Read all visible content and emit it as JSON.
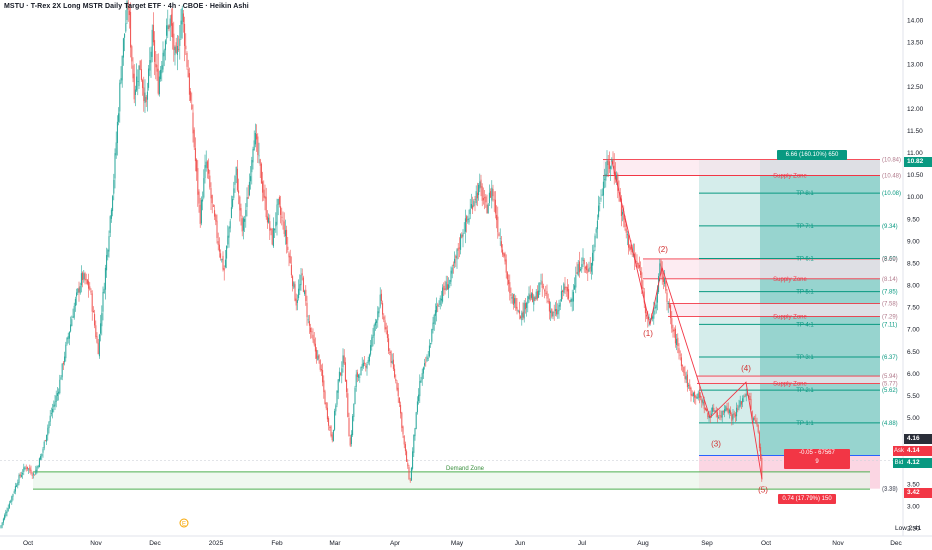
{
  "title": "MSTU · T-Rex 2X Long MSTR Daily Target ETF · 4h · CBOE · Heikin Ashi",
  "colors": {
    "up": "#26a69a",
    "down": "#ef5350",
    "tp_line": "#089981",
    "supply": "#f23645",
    "demand_line": "#4caf50",
    "target_fill": "#b2dfdb",
    "stop_fill": "#f8bbd0"
  },
  "chart_data": {
    "type": "candlestick",
    "ylim": [
      2.2,
      14.4
    ],
    "y_ticks": [
      "14.00",
      "13.50",
      "13.00",
      "12.50",
      "12.00",
      "11.50",
      "11.00",
      "10.50",
      "10.00",
      "9.50",
      "9.00",
      "8.50",
      "8.00",
      "7.50",
      "7.00",
      "6.50",
      "6.00",
      "5.50",
      "5.00",
      "4.50",
      "4.00",
      "3.50",
      "3.00",
      "2.50"
    ],
    "x_ticks": [
      "Oct",
      "Nov",
      "Dec",
      "2025",
      "Feb",
      "Mar",
      "Apr",
      "May",
      "Jun",
      "Jul",
      "Aug",
      "Sep",
      "Oct",
      "Nov",
      "Dec"
    ],
    "close_path": [
      [
        0,
        2.5
      ],
      [
        10,
        3.1
      ],
      [
        18,
        3.6
      ],
      [
        26,
        3.9
      ],
      [
        34,
        3.7
      ],
      [
        42,
        4.2
      ],
      [
        50,
        5.0
      ],
      [
        58,
        5.6
      ],
      [
        66,
        6.6
      ],
      [
        74,
        7.5
      ],
      [
        82,
        8.2
      ],
      [
        90,
        7.9
      ],
      [
        98,
        6.5
      ],
      [
        106,
        8.5
      ],
      [
        114,
        10.5
      ],
      [
        122,
        13.2
      ],
      [
        128,
        14.4
      ],
      [
        134,
        12.4
      ],
      [
        140,
        13.0
      ],
      [
        146,
        12.0
      ],
      [
        152,
        13.6
      ],
      [
        158,
        12.5
      ],
      [
        164,
        13.5
      ],
      [
        170,
        14.0
      ],
      [
        176,
        13.0
      ],
      [
        182,
        14.2
      ],
      [
        188,
        12.8
      ],
      [
        194,
        11.2
      ],
      [
        200,
        9.5
      ],
      [
        206,
        10.8
      ],
      [
        212,
        9.8
      ],
      [
        218,
        9.0
      ],
      [
        224,
        8.3
      ],
      [
        230,
        9.5
      ],
      [
        236,
        10.6
      ],
      [
        242,
        9.2
      ],
      [
        248,
        10.0
      ],
      [
        254,
        11.5
      ],
      [
        260,
        10.6
      ],
      [
        266,
        9.7
      ],
      [
        272,
        9.0
      ],
      [
        278,
        9.8
      ],
      [
        284,
        9.3
      ],
      [
        290,
        8.5
      ],
      [
        296,
        7.6
      ],
      [
        302,
        8.2
      ],
      [
        308,
        7.2
      ],
      [
        314,
        6.6
      ],
      [
        320,
        6.2
      ],
      [
        326,
        5.2
      ],
      [
        332,
        4.5
      ],
      [
        338,
        5.8
      ],
      [
        344,
        6.4
      ],
      [
        350,
        4.3
      ],
      [
        356,
        5.9
      ],
      [
        362,
        6.1
      ],
      [
        368,
        6.3
      ],
      [
        374,
        7.0
      ],
      [
        380,
        7.7
      ],
      [
        386,
        6.9
      ],
      [
        392,
        6.2
      ],
      [
        398,
        5.6
      ],
      [
        404,
        4.4
      ],
      [
        410,
        3.5
      ],
      [
        414,
        4.6
      ],
      [
        420,
        5.8
      ],
      [
        428,
        6.4
      ],
      [
        436,
        7.5
      ],
      [
        444,
        7.9
      ],
      [
        450,
        8.1
      ],
      [
        456,
        8.6
      ],
      [
        462,
        9.2
      ],
      [
        468,
        9.5
      ],
      [
        474,
        10.0
      ],
      [
        480,
        10.2
      ],
      [
        486,
        9.7
      ],
      [
        492,
        10.2
      ],
      [
        498,
        9.3
      ],
      [
        504,
        8.7
      ],
      [
        510,
        7.7
      ],
      [
        516,
        7.6
      ],
      [
        522,
        7.3
      ],
      [
        528,
        7.8
      ],
      [
        534,
        7.6
      ],
      [
        540,
        8.0
      ],
      [
        546,
        7.8
      ],
      [
        552,
        7.3
      ],
      [
        558,
        7.4
      ],
      [
        564,
        8.0
      ],
      [
        570,
        7.6
      ],
      [
        576,
        8.2
      ],
      [
        582,
        8.6
      ],
      [
        588,
        8.2
      ],
      [
        594,
        8.9
      ],
      [
        600,
        10.0
      ],
      [
        606,
        10.6
      ],
      [
        612,
        10.8
      ],
      [
        616,
        10.5
      ],
      [
        622,
        9.6
      ],
      [
        628,
        9.0
      ],
      [
        634,
        8.6
      ],
      [
        640,
        8.3
      ],
      [
        646,
        7.4
      ],
      [
        650,
        7.1
      ],
      [
        656,
        7.6
      ],
      [
        660,
        8.4
      ],
      [
        666,
        7.9
      ],
      [
        672,
        7.0
      ],
      [
        678,
        6.6
      ],
      [
        684,
        6.0
      ],
      [
        690,
        5.6
      ],
      [
        696,
        5.5
      ],
      [
        702,
        5.4
      ],
      [
        708,
        5.0
      ],
      [
        714,
        5.2
      ],
      [
        720,
        5.0
      ],
      [
        726,
        5.3
      ],
      [
        732,
        5.0
      ],
      [
        738,
        5.2
      ],
      [
        744,
        5.5
      ],
      [
        748,
        5.6
      ],
      [
        752,
        5.0
      ],
      [
        758,
        4.8
      ],
      [
        762,
        3.6
      ]
    ],
    "levels": [
      {
        "label": "(10.84)",
        "value": 10.84,
        "kind": "stop"
      },
      {
        "label": "Supply Zone",
        "value": 10.48,
        "kind": "supply",
        "price_label": "(10.48)"
      },
      {
        "label": "TP 8:1",
        "value": 10.08,
        "kind": "tp",
        "price_label": "(10.08)"
      },
      {
        "label": "TP 7:1",
        "value": 9.34,
        "kind": "tp",
        "price_label": "(9.34)"
      },
      {
        "label": "TP 6:1",
        "value": 8.6,
        "kind": "tp",
        "price_label": "(8.60)"
      },
      {
        "label": "",
        "value": 8.59,
        "kind": "supply_top",
        "price_label": "(8.59)"
      },
      {
        "label": "Supply Zone",
        "value": 8.14,
        "kind": "supply",
        "price_label": "(8.14)"
      },
      {
        "label": "TP 5:1",
        "value": 7.85,
        "kind": "tp",
        "price_label": "(7.85)"
      },
      {
        "label": "",
        "value": 7.58,
        "kind": "supply_top",
        "price_label": "(7.58)"
      },
      {
        "label": "Supply Zone",
        "value": 7.29,
        "kind": "supply",
        "price_label": "(7.29)"
      },
      {
        "label": "TP 4:1",
        "value": 7.11,
        "kind": "tp",
        "price_label": "(7.11)"
      },
      {
        "label": "TP 3:1",
        "value": 6.37,
        "kind": "tp",
        "price_label": "(6.37)"
      },
      {
        "label": "",
        "value": 5.94,
        "kind": "supply_top",
        "price_label": "(5.94)"
      },
      {
        "label": "Supply Zone",
        "value": 5.77,
        "kind": "supply",
        "price_label": "(5.77)"
      },
      {
        "label": "TP 2:1",
        "value": 5.62,
        "kind": "tp",
        "price_label": "(5.62)"
      },
      {
        "label": "TP 1:1",
        "value": 4.88,
        "kind": "tp",
        "price_label": "(4.88)"
      },
      {
        "label": "Demand Zone",
        "value": 3.77,
        "kind": "demand",
        "price_label": ""
      },
      {
        "label": "",
        "value": 3.39,
        "kind": "demand_bottom",
        "price_label": "(3.39)"
      },
      {
        "label": "",
        "value": 3.38,
        "kind": "demand_bottom",
        "price_label": "(3.38)"
      }
    ],
    "waves": [
      "(1)",
      "(2)",
      "(3)",
      "(4)",
      "(5)"
    ]
  },
  "right_axis": {
    "current": "10.82",
    "ask_label": "Ask",
    "ask_value": "4.14",
    "bid_label": "Bid",
    "bid_value": "4.12",
    "price_416": "4.16",
    "price_342": "3.42",
    "low_label": "Low",
    "low_value": "2.41"
  },
  "position": {
    "target_label": "6.66 (160.10%) 650",
    "stop_label": "0.74 (17.79%) 150",
    "center_label": "-0.05 - 67567",
    "center_sub": "9"
  },
  "event_icon": "earnings-icon",
  "event_glyph": "E"
}
